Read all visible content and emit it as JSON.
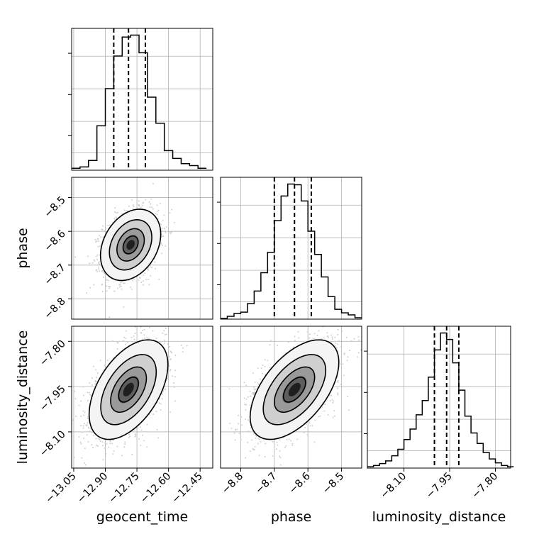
{
  "chart_data": {
    "type": "corner",
    "grid": true,
    "parameters": [
      "geocent_time",
      "phase",
      "luminosity_distance"
    ],
    "ranges": {
      "geocent_time": [
        -13.06,
        -12.39
      ],
      "phase": [
        -8.86,
        -8.44
      ],
      "luminosity_distance": [
        -8.22,
        -7.75
      ]
    },
    "ticks": {
      "geocent_time": [
        -13.05,
        -12.9,
        -12.75,
        -12.6,
        -12.45
      ],
      "phase": [
        -8.8,
        -8.7,
        -8.6,
        -8.5
      ],
      "luminosity_distance": [
        -8.1,
        -7.95,
        -7.8
      ]
    },
    "tick_labels": {
      "geocent_time": [
        "−13.05",
        "−12.90",
        "−12.75",
        "−12.60",
        "−12.45"
      ],
      "phase": [
        "−8.8",
        "−8.7",
        "−8.6",
        "−8.5"
      ],
      "luminosity_distance": [
        "−8.10",
        "−7.95",
        "−7.80"
      ]
    },
    "axis_labels": {
      "geocent_time": "geocent_time",
      "phase": "phase",
      "luminosity_distance": "luminosity_distance"
    },
    "quantiles": {
      "geocent_time": [
        -12.86,
        -12.79,
        -12.71
      ],
      "phase": [
        -8.7,
        -8.64,
        -8.59
      ],
      "luminosity_distance": [
        -8.0,
        -7.96,
        -7.92
      ]
    },
    "histograms": {
      "geocent_time": {
        "edges": [
          -13.06,
          -13.02,
          -12.98,
          -12.94,
          -12.9,
          -12.86,
          -12.82,
          -12.78,
          -12.74,
          -12.7,
          -12.66,
          -12.62,
          -12.58,
          -12.54,
          -12.5,
          -12.46,
          -12.42
        ],
        "values": [
          3,
          5,
          15,
          68,
          125,
          175,
          204,
          207,
          180,
          112,
          72,
          30,
          18,
          10,
          7,
          3
        ]
      },
      "phase": {
        "edges": [
          -8.86,
          -8.84,
          -8.82,
          -8.8,
          -8.78,
          -8.76,
          -8.74,
          -8.72,
          -8.7,
          -8.68,
          -8.66,
          -8.64,
          -8.62,
          -8.6,
          -8.58,
          -8.56,
          -8.54,
          -8.52,
          -8.5,
          -8.48,
          -8.46,
          -8.44
        ],
        "values": [
          1,
          4,
          8,
          10,
          22,
          40,
          66,
          95,
          140,
          175,
          192,
          191,
          168,
          125,
          92,
          60,
          32,
          14,
          9,
          6,
          2
        ]
      },
      "luminosity_distance": {
        "edges": [
          -8.22,
          -8.2,
          -8.18,
          -8.16,
          -8.14,
          -8.12,
          -8.1,
          -8.08,
          -8.06,
          -8.04,
          -8.02,
          -8.0,
          -7.98,
          -7.96,
          -7.94,
          -7.92,
          -7.9,
          -7.88,
          -7.86,
          -7.84,
          -7.82,
          -7.8,
          -7.78,
          -7.76,
          -7.74
        ],
        "values": [
          2,
          4,
          7,
          11,
          19,
          29,
          44,
          60,
          82,
          104,
          140,
          182,
          208,
          198,
          162,
          120,
          80,
          54,
          38,
          24,
          14,
          8,
          4,
          2
        ]
      }
    },
    "pairs": [
      {
        "x": "geocent_time",
        "y": "phase",
        "center": [
          -12.78,
          -8.64
        ],
        "sigma": [
          0.065,
          0.048
        ],
        "rho": 0.3
      },
      {
        "x": "geocent_time",
        "y": "luminosity_distance",
        "center": [
          -12.79,
          -7.96
        ],
        "sigma": [
          0.085,
          0.075
        ],
        "rho": 0.5
      },
      {
        "x": "phase",
        "y": "luminosity_distance",
        "center": [
          -8.64,
          -7.96
        ],
        "sigma": [
          0.06,
          0.075
        ],
        "rho": 0.55
      }
    ]
  }
}
